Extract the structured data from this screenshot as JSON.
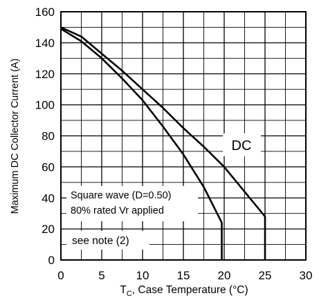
{
  "chart_data": {
    "type": "line",
    "xlabel": {
      "symbol": "T",
      "subscript": "C",
      "text": ", Case Temperature (°C)"
    },
    "ylabel": "Maximum DC Collector Current (A)",
    "xlim": [
      0,
      30
    ],
    "ylim": [
      0,
      160
    ],
    "xticks": [
      0,
      5,
      10,
      15,
      20,
      25,
      30
    ],
    "yticks": [
      0,
      20,
      40,
      60,
      80,
      100,
      120,
      140,
      160
    ],
    "grid": true,
    "series": [
      {
        "name": "DC",
        "x": [
          0,
          2.5,
          5,
          7.5,
          10,
          12.5,
          15,
          17.5,
          20,
          22.5,
          25,
          25
        ],
        "y": [
          150,
          144,
          133,
          122,
          110,
          98,
          85,
          73,
          60,
          44,
          28,
          0
        ]
      },
      {
        "name": "",
        "x": [
          0,
          2.5,
          5,
          7.5,
          10,
          12.5,
          15,
          17.5,
          19.7,
          19.7
        ],
        "y": [
          149,
          141,
          130,
          117,
          103,
          86,
          68,
          47,
          24,
          0
        ]
      }
    ],
    "annotations": [
      {
        "id": "dc",
        "text": "DC"
      },
      {
        "id": "square-wave",
        "text": "Square wave (D=0.50)"
      },
      {
        "id": "rated",
        "text": "80% rated Vr applied"
      },
      {
        "id": "note",
        "text": "see note (2)"
      }
    ],
    "colors": {
      "line": "#000000",
      "grid": "#000000",
      "background": "#ffffff"
    }
  }
}
